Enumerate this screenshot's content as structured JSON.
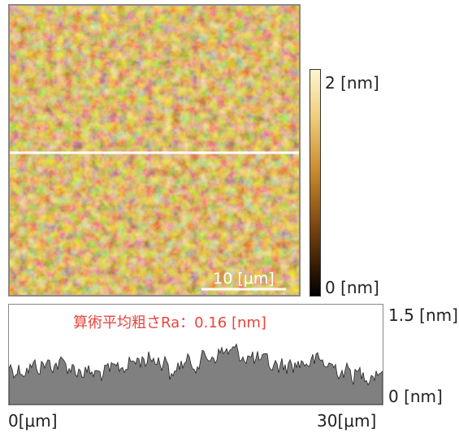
{
  "afm_image": {
    "scale_bar_label": "10 [μm]"
  },
  "colorbar": {
    "max_label": "2 [nm]",
    "min_label": "0 [nm]"
  },
  "profile": {
    "roughness_label": "算術平均粗さRa：0.16 [nm]",
    "y_max_label": "1.5 [nm]",
    "y_min_label": "0 [nm]",
    "x_min_label": "0[μm]",
    "x_max_label": "30[μm]"
  },
  "colors": {
    "roughness_text": "#e8463c",
    "profile_fill": "#808080",
    "scan_line": "#ffffff"
  }
}
